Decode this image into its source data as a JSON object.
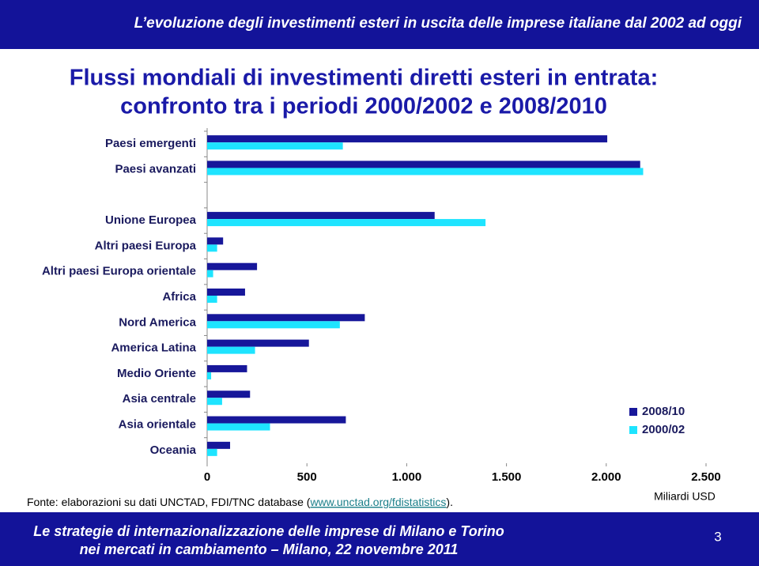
{
  "header": {
    "title": "L’evoluzione degli investimenti esteri in uscita delle imprese italiane dal 2002 ad oggi"
  },
  "chart_data": {
    "type": "bar",
    "orientation": "horizontal",
    "title": "Flussi mondiali di investimenti diretti esteri in entrata:",
    "subtitle": "confronto tra i periodi 2000/2002 e 2008/2010",
    "categories": [
      "Paesi emergenti",
      "Paesi avanzati",
      null,
      "Unione Europea",
      "Altri paesi Europa",
      "Altri paesi Europa orientale",
      "Africa",
      "Nord America",
      "America Latina",
      "Medio Oriente",
      "Asia centrale",
      "Asia orientale",
      "Oceania"
    ],
    "series": [
      {
        "name": "2008/10",
        "color": "#17179a",
        "values": [
          2005,
          2170,
          null,
          1140,
          80,
          250,
          190,
          790,
          510,
          200,
          215,
          695,
          115
        ]
      },
      {
        "name": "2000/02",
        "color": "#1ee4ff",
        "values": [
          680,
          2185,
          null,
          1395,
          50,
          30,
          50,
          665,
          240,
          20,
          75,
          315,
          50
        ]
      }
    ],
    "xlim": [
      0,
      2500
    ],
    "xticks": [
      0,
      500,
      {
        "value": 1000,
        "label": "1.000"
      },
      {
        "value": 1500,
        "label": "1.500"
      },
      {
        "value": 2000,
        "label": "2.000"
      },
      {
        "value": 2500,
        "label": "2.500"
      }
    ],
    "x_label": "Miliardi USD",
    "legend": "right",
    "source": {
      "prefix": "Fonte: elaborazioni su dati UNCTAD, FDI/TNC database (",
      "link": "www.unctad.org/fdistatistics",
      "suffix": ")."
    }
  },
  "footer": {
    "line1": "Le strategie di internazionalizzazione delle imprese di Milano e Torino",
    "line2": "nei mercati in cambiamento – Milano, 22 novembre 2011",
    "page": "3"
  }
}
